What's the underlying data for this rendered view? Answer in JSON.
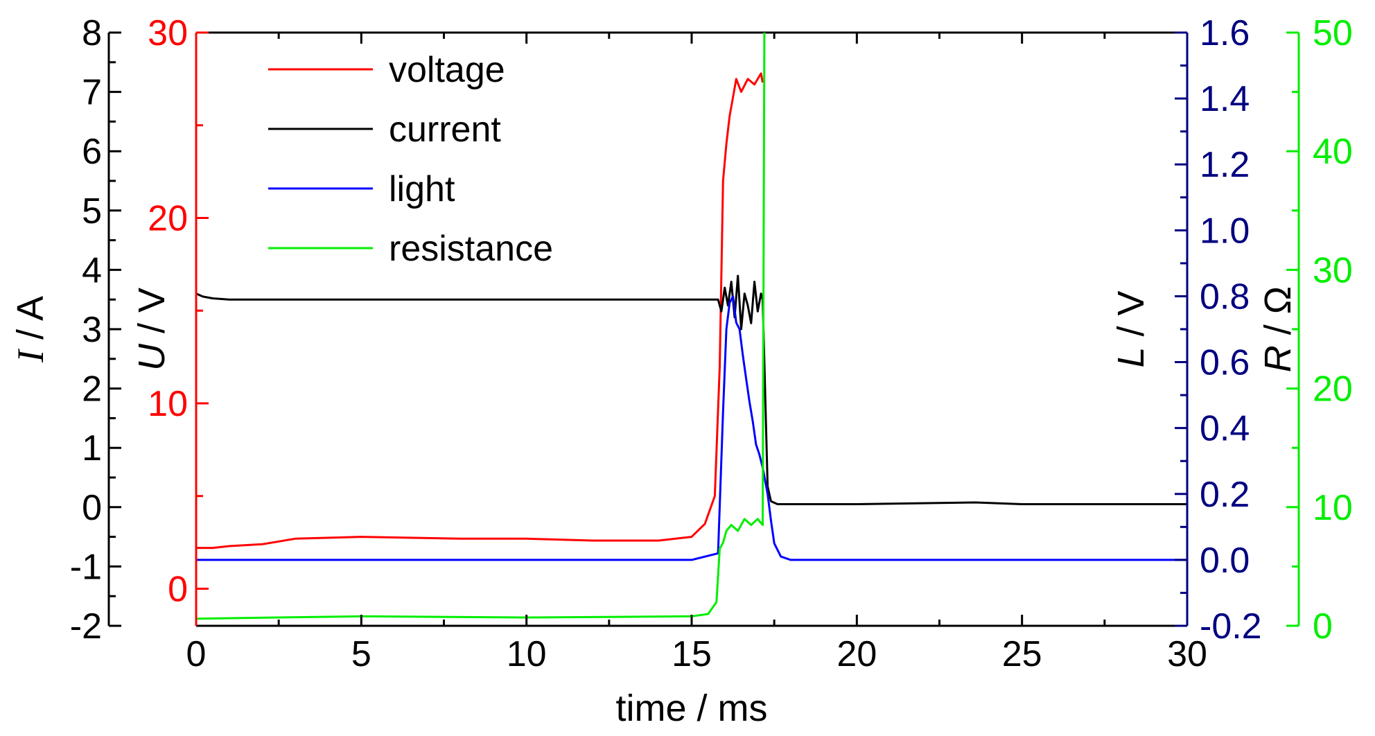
{
  "colors": {
    "voltage": "#ff0000",
    "current": "#000000",
    "light": "#0000ff",
    "resistance": "#00ee00",
    "light_axis": "#000080",
    "resistance_axis": "#00ee00"
  },
  "chart_data": {
    "type": "line",
    "title": "",
    "xlabel": "time / ms",
    "xlim": [
      0,
      30
    ],
    "x_ticks": [
      "0",
      "5",
      "10",
      "15",
      "20",
      "25",
      "30"
    ],
    "grid": false,
    "legend_position": "top-left",
    "axes": {
      "current": {
        "label_italic": "I",
        "label_rest": " / A",
        "side": "left-outer",
        "range": [
          -2,
          8
        ],
        "ticks": [
          "-2",
          "-1",
          "0",
          "1",
          "2",
          "3",
          "4",
          "5",
          "6",
          "7",
          "8"
        ]
      },
      "voltage": {
        "label_italic": "U",
        "label_rest": " / V",
        "side": "left-inner",
        "range": [
          -2,
          30
        ],
        "ticks": [
          "0",
          "10",
          "20",
          "30"
        ]
      },
      "light": {
        "label_italic": "L",
        "label_rest": " / V",
        "side": "right-inner",
        "range": [
          -0.2,
          1.6
        ],
        "ticks": [
          "-0.2",
          "0.0",
          "0.2",
          "0.4",
          "0.6",
          "0.8",
          "1.0",
          "1.2",
          "1.4",
          "1.6"
        ]
      },
      "resistance": {
        "label_italic": "R",
        "label_rest": " / Ω",
        "side": "right-outer",
        "range": [
          0,
          50
        ],
        "ticks": [
          "0",
          "10",
          "20",
          "30",
          "40",
          "50"
        ]
      }
    },
    "series": [
      {
        "name": "voltage",
        "axis": "voltage",
        "x": [
          0,
          0.5,
          1,
          2,
          3,
          5,
          8,
          10,
          12,
          14,
          15,
          15.4,
          15.7,
          15.85,
          15.95,
          16.05,
          16.15,
          16.25,
          16.35,
          16.5,
          16.7,
          16.9,
          17.1,
          17.15
        ],
        "y": [
          2.2,
          2.2,
          2.3,
          2.4,
          2.7,
          2.8,
          2.7,
          2.7,
          2.6,
          2.6,
          2.8,
          3.5,
          5.0,
          12.0,
          22.0,
          24.0,
          25.5,
          26.5,
          27.5,
          26.8,
          27.5,
          27.2,
          27.8,
          27.3
        ]
      },
      {
        "name": "current",
        "axis": "current",
        "x": [
          0,
          0.2,
          0.5,
          1,
          2,
          5,
          10,
          15,
          15.8,
          15.9,
          16.0,
          16.1,
          16.2,
          16.3,
          16.4,
          16.5,
          16.6,
          16.7,
          16.8,
          16.9,
          17.0,
          17.1,
          17.15,
          17.3,
          17.4,
          17.6,
          18,
          20,
          23.6,
          25,
          30
        ],
        "y": [
          3.6,
          3.55,
          3.52,
          3.5,
          3.5,
          3.5,
          3.5,
          3.5,
          3.5,
          3.3,
          3.7,
          3.4,
          3.8,
          3.2,
          3.9,
          3.0,
          3.6,
          3.4,
          3.1,
          3.8,
          3.3,
          3.6,
          3.5,
          0.35,
          0.1,
          0.05,
          0.05,
          0.05,
          0.08,
          0.05,
          0.05
        ]
      },
      {
        "name": "light",
        "axis": "light",
        "x": [
          0,
          5,
          10,
          15,
          15.8,
          15.95,
          16.05,
          16.15,
          16.25,
          16.35,
          16.45,
          16.55,
          16.65,
          16.75,
          16.85,
          16.95,
          17.05,
          17.15,
          17.3,
          17.4,
          17.5,
          17.7,
          18,
          20,
          25,
          30
        ],
        "y": [
          0.0,
          0.0,
          0.0,
          0.0,
          0.02,
          0.45,
          0.7,
          0.78,
          0.8,
          0.72,
          0.7,
          0.62,
          0.55,
          0.48,
          0.42,
          0.35,
          0.32,
          0.28,
          0.2,
          0.12,
          0.05,
          0.01,
          0.0,
          0.0,
          0.0,
          0.0
        ]
      },
      {
        "name": "resistance",
        "axis": "resistance",
        "x": [
          0,
          5,
          10,
          15,
          15.5,
          15.75,
          15.85,
          15.95,
          16.05,
          16.2,
          16.4,
          16.6,
          16.8,
          17.0,
          17.15,
          17.2
        ],
        "y": [
          0.6,
          0.8,
          0.7,
          0.8,
          1.0,
          2.0,
          6.5,
          7.0,
          8.0,
          8.5,
          8.0,
          9.0,
          8.5,
          9.0,
          8.5,
          50
        ]
      }
    ]
  }
}
